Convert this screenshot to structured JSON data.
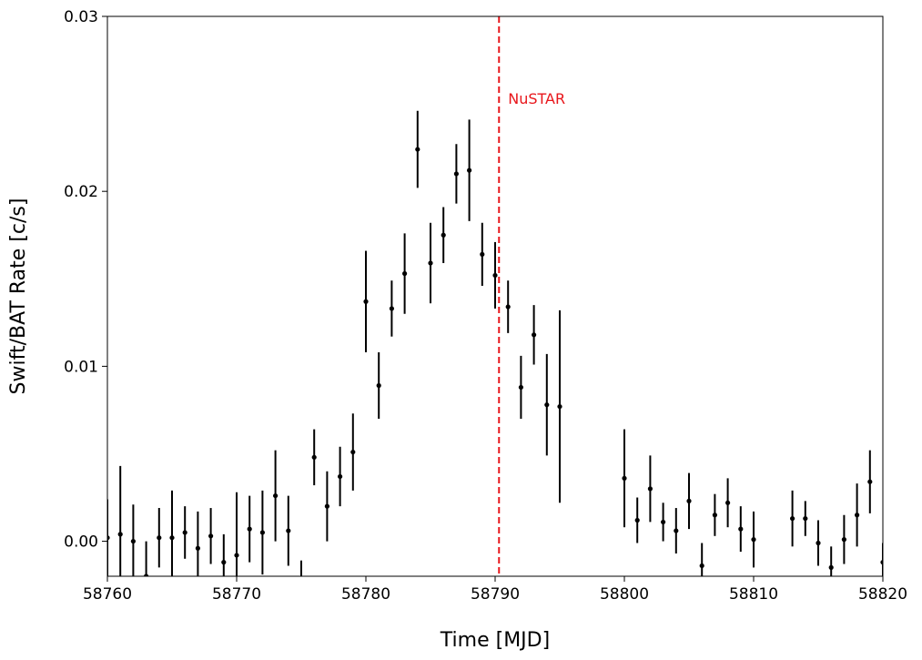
{
  "chart_data": {
    "type": "scatter",
    "xlabel": "Time [MJD]",
    "ylabel": "Swift/BAT Rate [c/s]",
    "xlim": [
      58760,
      58820
    ],
    "ylim": [
      -0.002,
      0.03
    ],
    "x_ticks": [
      58760,
      58770,
      58780,
      58790,
      58800,
      58810,
      58820
    ],
    "y_ticks": [
      0.0,
      0.01,
      0.02,
      0.03
    ],
    "x_tick_labels": [
      "58760",
      "58770",
      "58780",
      "58790",
      "58800",
      "58810",
      "58820"
    ],
    "y_tick_labels": [
      "0.00",
      "0.01",
      "0.02",
      "0.03"
    ],
    "grid": false,
    "series": [
      {
        "color": "#000000",
        "marker": "point-with-vertical-error-bar",
        "points": [
          {
            "x": 58760,
            "y": 0.0002,
            "err": 0.0022
          },
          {
            "x": 58761,
            "y": 0.0004,
            "err": 0.0039
          },
          {
            "x": 58762,
            "y": 0.0,
            "err": 0.0021
          },
          {
            "x": 58763,
            "y": -0.002,
            "err": 0.002
          },
          {
            "x": 58764,
            "y": 0.0002,
            "err": 0.0017
          },
          {
            "x": 58765,
            "y": 0.0002,
            "err": 0.0027
          },
          {
            "x": 58766,
            "y": 0.0005,
            "err": 0.0015
          },
          {
            "x": 58767,
            "y": -0.0004,
            "err": 0.0021
          },
          {
            "x": 58768,
            "y": 0.0003,
            "err": 0.0016
          },
          {
            "x": 58769,
            "y": -0.0012,
            "err": 0.0016
          },
          {
            "x": 58770,
            "y": -0.0008,
            "err": 0.0036
          },
          {
            "x": 58771,
            "y": 0.0007,
            "err": 0.0019
          },
          {
            "x": 58772,
            "y": 0.0005,
            "err": 0.0024
          },
          {
            "x": 58773,
            "y": 0.0026,
            "err": 0.0026
          },
          {
            "x": 58774,
            "y": 0.0006,
            "err": 0.002
          },
          {
            "x": 58775,
            "y": -0.0022,
            "err": 0.0011
          },
          {
            "x": 58776,
            "y": 0.0048,
            "err": 0.0016
          },
          {
            "x": 58777,
            "y": 0.002,
            "err": 0.002
          },
          {
            "x": 58778,
            "y": 0.0037,
            "err": 0.0017
          },
          {
            "x": 58779,
            "y": 0.0051,
            "err": 0.0022
          },
          {
            "x": 58780,
            "y": 0.0137,
            "err": 0.0029
          },
          {
            "x": 58781,
            "y": 0.0089,
            "err": 0.0019
          },
          {
            "x": 58782,
            "y": 0.0133,
            "err": 0.0016
          },
          {
            "x": 58783,
            "y": 0.0153,
            "err": 0.0023
          },
          {
            "x": 58784,
            "y": 0.0224,
            "err": 0.0022
          },
          {
            "x": 58785,
            "y": 0.0159,
            "err": 0.0023
          },
          {
            "x": 58786,
            "y": 0.0175,
            "err": 0.0016
          },
          {
            "x": 58787,
            "y": 0.021,
            "err": 0.0017
          },
          {
            "x": 58788,
            "y": 0.0212,
            "err": 0.0029
          },
          {
            "x": 58789,
            "y": 0.0164,
            "err": 0.0018
          },
          {
            "x": 58790,
            "y": 0.0152,
            "err": 0.0019
          },
          {
            "x": 58791,
            "y": 0.0134,
            "err": 0.0015
          },
          {
            "x": 58792,
            "y": 0.0088,
            "err": 0.0018
          },
          {
            "x": 58793,
            "y": 0.0118,
            "err": 0.0017
          },
          {
            "x": 58794,
            "y": 0.0078,
            "err": 0.0029
          },
          {
            "x": 58795,
            "y": 0.0077,
            "err": 0.0055
          },
          {
            "x": 58800,
            "y": 0.0036,
            "err": 0.0028
          },
          {
            "x": 58801,
            "y": 0.0012,
            "err": 0.0013
          },
          {
            "x": 58802,
            "y": 0.003,
            "err": 0.0019
          },
          {
            "x": 58803,
            "y": 0.0011,
            "err": 0.0011
          },
          {
            "x": 58804,
            "y": 0.0006,
            "err": 0.0013
          },
          {
            "x": 58805,
            "y": 0.0023,
            "err": 0.0016
          },
          {
            "x": 58806,
            "y": -0.0014,
            "err": 0.0013
          },
          {
            "x": 58807,
            "y": 0.0015,
            "err": 0.0012
          },
          {
            "x": 58808,
            "y": 0.0022,
            "err": 0.0014
          },
          {
            "x": 58809,
            "y": 0.0007,
            "err": 0.0013
          },
          {
            "x": 58810,
            "y": 0.0001,
            "err": 0.0016
          },
          {
            "x": 58813,
            "y": 0.0013,
            "err": 0.0016
          },
          {
            "x": 58814,
            "y": 0.0013,
            "err": 0.001
          },
          {
            "x": 58815,
            "y": -0.0001,
            "err": 0.0013
          },
          {
            "x": 58816,
            "y": -0.0015,
            "err": 0.0012
          },
          {
            "x": 58817,
            "y": 0.0001,
            "err": 0.0014
          },
          {
            "x": 58818,
            "y": 0.0015,
            "err": 0.0018
          },
          {
            "x": 58819,
            "y": 0.0034,
            "err": 0.0018
          },
          {
            "x": 58820,
            "y": -0.0012,
            "err": 0.0011
          }
        ]
      }
    ],
    "annotations": [
      {
        "type": "vline",
        "x": 58790.3,
        "style": "dashed",
        "color": "#e8161b",
        "label": "NuSTAR"
      }
    ]
  }
}
